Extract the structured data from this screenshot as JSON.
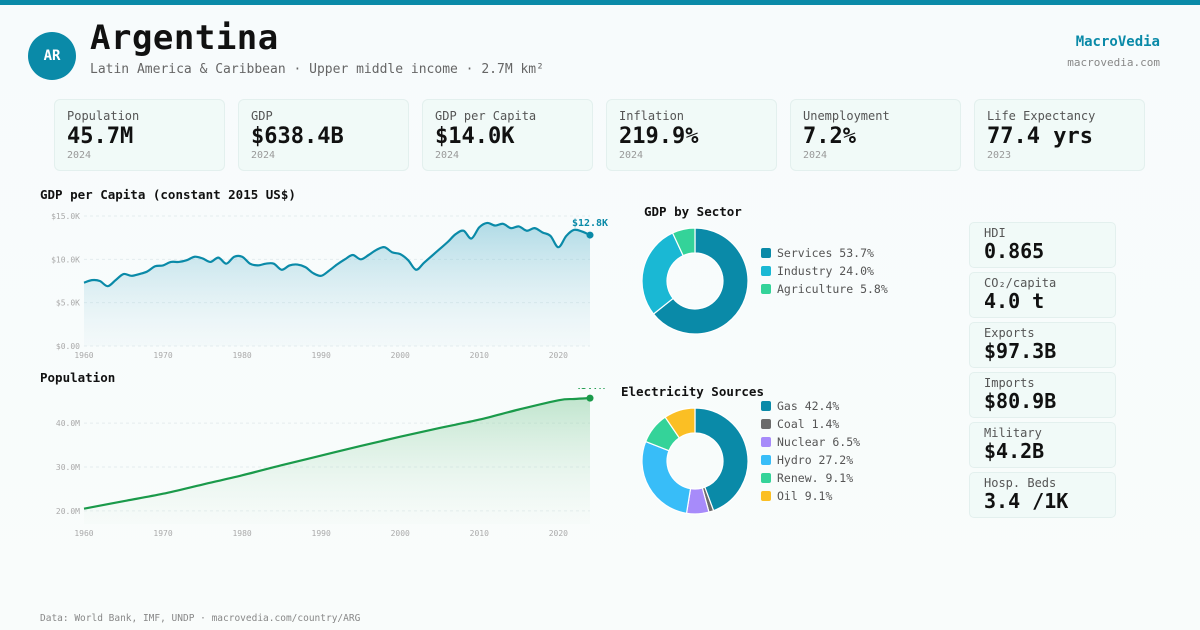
{
  "header": {
    "avatar": "AR",
    "title": "Argentina",
    "subtitle": "Latin America & Caribbean · Upper middle income · 2.7M km²",
    "brand": "MacroVedia",
    "brand_url": "macrovedia.com"
  },
  "kpis": [
    {
      "label": "Population",
      "value": "45.7M",
      "year": "2024"
    },
    {
      "label": "GDP",
      "value": "$638.4B",
      "year": "2024"
    },
    {
      "label": "GDP per Capita",
      "value": "$14.0K",
      "year": "2024"
    },
    {
      "label": "Inflation",
      "value": "219.9%",
      "year": "2024"
    },
    {
      "label": "Unemployment",
      "value": "7.2%",
      "year": "2024"
    },
    {
      "label": "Life Expectancy",
      "value": "77.4 yrs",
      "year": "2023"
    }
  ],
  "side": [
    {
      "label": "HDI",
      "value": "0.865"
    },
    {
      "label": "CO₂/capita",
      "value": "4.0 t"
    },
    {
      "label": "Exports",
      "value": "$97.3B"
    },
    {
      "label": "Imports",
      "value": "$80.9B"
    },
    {
      "label": "Military",
      "value": "$4.2B"
    },
    {
      "label": "Hosp. Beds",
      "value": "3.4 /1K"
    }
  ],
  "footer": "Data: World Bank, IMF, UNDP · macrovedia.com/country/ARG",
  "colors": {
    "accent": "#0a8aa8",
    "line_gdp": "#0a8aa8",
    "line_pop": "#1a9a4a"
  },
  "chart_data": [
    {
      "type": "area",
      "title": "GDP per Capita (constant 2015 US$)",
      "x_ticks": [
        1960,
        1970,
        1980,
        1990,
        2000,
        2010,
        2020
      ],
      "y_ticks": [
        "$0.00",
        "$5.0K",
        "$10.0K",
        "$15.0K"
      ],
      "y_tick_values": [
        0,
        5000,
        10000,
        15000
      ],
      "xlim": [
        1960,
        2024
      ],
      "ylim": [
        0,
        15000
      ],
      "end_label": "$12.8K",
      "x": [
        1960,
        1961,
        1962,
        1963,
        1964,
        1965,
        1966,
        1967,
        1968,
        1969,
        1970,
        1971,
        1972,
        1973,
        1974,
        1975,
        1976,
        1977,
        1978,
        1979,
        1980,
        1981,
        1982,
        1983,
        1984,
        1985,
        1986,
        1987,
        1988,
        1989,
        1990,
        1991,
        1992,
        1993,
        1994,
        1995,
        1996,
        1997,
        1998,
        1999,
        2000,
        2001,
        2002,
        2003,
        2004,
        2005,
        2006,
        2007,
        2008,
        2009,
        2010,
        2011,
        2012,
        2013,
        2014,
        2015,
        2016,
        2017,
        2018,
        2019,
        2020,
        2021,
        2022,
        2023,
        2024
      ],
      "y": [
        7300,
        7600,
        7500,
        6900,
        7600,
        8300,
        8100,
        8300,
        8600,
        9200,
        9300,
        9700,
        9700,
        9900,
        10300,
        10100,
        9700,
        10200,
        9500,
        10300,
        10300,
        9500,
        9300,
        9500,
        9500,
        8800,
        9300,
        9400,
        9100,
        8400,
        8100,
        8700,
        9400,
        10000,
        10500,
        10000,
        10500,
        11100,
        11400,
        10800,
        10600,
        9900,
        8800,
        9600,
        10400,
        11200,
        12000,
        12900,
        13300,
        12400,
        13700,
        14200,
        13900,
        14100,
        13600,
        13800,
        13300,
        13600,
        13100,
        12700,
        11400,
        12700,
        13400,
        13200,
        12800
      ]
    },
    {
      "type": "area",
      "title": "Population",
      "x_ticks": [
        1960,
        1970,
        1980,
        1990,
        2000,
        2010,
        2020
      ],
      "y_ticks": [
        "20.0M",
        "30.0M",
        "40.0M"
      ],
      "y_tick_values": [
        20,
        30,
        40
      ],
      "xlim": [
        1960,
        2024
      ],
      "ylim": [
        17,
        48
      ],
      "end_label": "45.7M",
      "x": [
        1960,
        1965,
        1970,
        1975,
        1980,
        1985,
        1990,
        1995,
        2000,
        2005,
        2010,
        2015,
        2020,
        2022,
        2024
      ],
      "y": [
        20.5,
        22.2,
        23.9,
        26.0,
        28.1,
        30.4,
        32.6,
        34.8,
        36.9,
        38.9,
        40.8,
        43.1,
        45.2,
        45.5,
        45.7
      ]
    },
    {
      "type": "pie",
      "title": "GDP by Sector",
      "labels": [
        "Services 53.7%",
        "Industry 24.0%",
        "Agriculture 5.8%"
      ],
      "values": [
        53.7,
        24.0,
        5.8
      ],
      "colors": [
        "#0a8aa8",
        "#1ab8d4",
        "#34d399"
      ]
    },
    {
      "type": "pie",
      "title": "Electricity Sources",
      "labels": [
        "Gas 42.4%",
        "Coal 1.4%",
        "Nuclear 6.5%",
        "Hydro 27.2%",
        "Renew. 9.1%",
        "Oil 9.1%"
      ],
      "values": [
        42.4,
        1.4,
        6.5,
        27.2,
        9.1,
        9.1
      ],
      "colors": [
        "#0a8aa8",
        "#6b6b6b",
        "#a78bfa",
        "#38bdf8",
        "#34d399",
        "#fbbf24"
      ]
    }
  ]
}
